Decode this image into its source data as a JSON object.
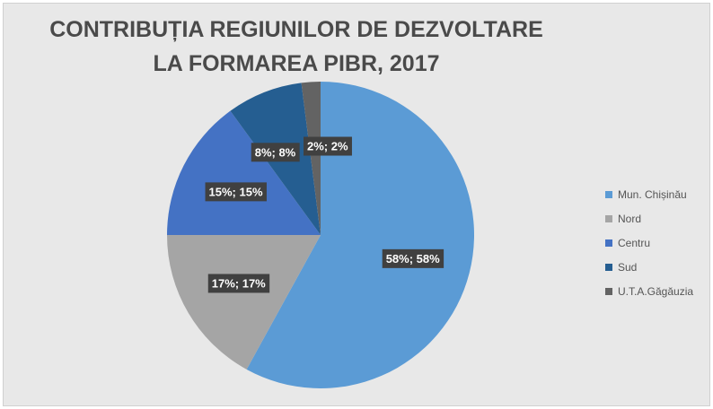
{
  "chart_data": {
    "type": "pie",
    "title": "CONTRIBUȚIA REGIUNILOR DE DEZVOLTARE LA FORMAREA PIBR, 2017",
    "categories": [
      "Mun. Chișinău",
      "Nord",
      "Centru",
      "Sud",
      "U.T.A.Găgăuzia"
    ],
    "values": [
      58,
      17,
      15,
      8,
      2
    ],
    "data_labels": [
      "58%; 58%",
      "17%; 17%",
      "15%; 15%",
      "8%; 8%",
      "2%; 2%"
    ],
    "colors": [
      "#5b9bd5",
      "#a5a5a5",
      "#4472c4",
      "#255e91",
      "#636363"
    ],
    "legend_position": "right",
    "start_angle": "12 o'clock, clockwise"
  }
}
